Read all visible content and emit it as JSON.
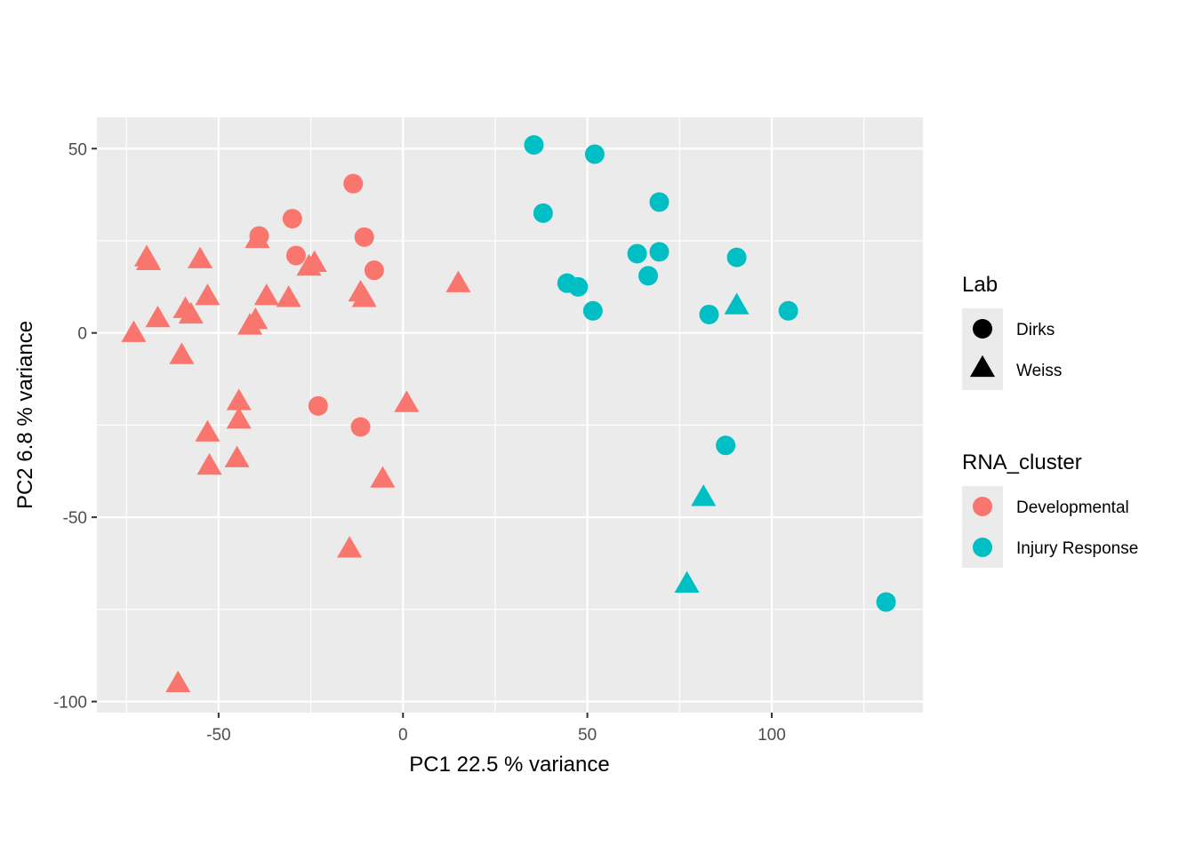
{
  "chart_data": {
    "type": "scatter",
    "xlabel": "PC1 22.5 % variance",
    "ylabel": "PC2 6.8 % variance",
    "xlim": [
      -83,
      141
    ],
    "ylim": [
      -103,
      58.5
    ],
    "x_ticks": [
      -50,
      0,
      50,
      100
    ],
    "y_ticks": [
      -100,
      -50,
      0,
      50
    ],
    "grid": true,
    "legend_position": "right",
    "colors": {
      "Developmental": "#F8766D",
      "Injury Response": "#00BFC4",
      "panel": "#EBEBEB",
      "grid": "#FFFFFF",
      "legend_key": "#000000"
    },
    "legends": [
      {
        "title": "Lab",
        "items": [
          {
            "label": "Dirks",
            "shape": "circle"
          },
          {
            "label": "Weiss",
            "shape": "triangle"
          }
        ]
      },
      {
        "title": "RNA_cluster",
        "items": [
          {
            "label": "Developmental",
            "color": "#F8766D"
          },
          {
            "label": "Injury Response",
            "color": "#00BFC4"
          }
        ]
      }
    ],
    "points": [
      {
        "x": -13.5,
        "y": 40.5,
        "lab": "Dirks",
        "cluster": "Developmental"
      },
      {
        "x": -30.0,
        "y": 31.0,
        "lab": "Dirks",
        "cluster": "Developmental"
      },
      {
        "x": -39.0,
        "y": 26.3,
        "lab": "Dirks",
        "cluster": "Developmental"
      },
      {
        "x": -10.5,
        "y": 26.0,
        "lab": "Dirks",
        "cluster": "Developmental"
      },
      {
        "x": -29.0,
        "y": 21.0,
        "lab": "Dirks",
        "cluster": "Developmental"
      },
      {
        "x": -7.8,
        "y": 17.0,
        "lab": "Dirks",
        "cluster": "Developmental"
      },
      {
        "x": -23.0,
        "y": -19.8,
        "lab": "Dirks",
        "cluster": "Developmental"
      },
      {
        "x": -11.5,
        "y": -25.5,
        "lab": "Dirks",
        "cluster": "Developmental"
      },
      {
        "x": -69.5,
        "y": 20.0,
        "lab": "Weiss",
        "cluster": "Developmental"
      },
      {
        "x": -69.0,
        "y": 19.0,
        "lab": "Weiss",
        "cluster": "Developmental"
      },
      {
        "x": -55.0,
        "y": 19.5,
        "lab": "Weiss",
        "cluster": "Developmental"
      },
      {
        "x": -39.5,
        "y": 25.0,
        "lab": "Weiss",
        "cluster": "Developmental"
      },
      {
        "x": -24.0,
        "y": 18.5,
        "lab": "Weiss",
        "cluster": "Developmental"
      },
      {
        "x": -25.5,
        "y": 17.5,
        "lab": "Weiss",
        "cluster": "Developmental"
      },
      {
        "x": 15.0,
        "y": 13.0,
        "lab": "Weiss",
        "cluster": "Developmental"
      },
      {
        "x": -11.5,
        "y": 10.5,
        "lab": "Weiss",
        "cluster": "Developmental"
      },
      {
        "x": -10.5,
        "y": 9.0,
        "lab": "Weiss",
        "cluster": "Developmental"
      },
      {
        "x": -53.0,
        "y": 9.5,
        "lab": "Weiss",
        "cluster": "Developmental"
      },
      {
        "x": -37.0,
        "y": 9.5,
        "lab": "Weiss",
        "cluster": "Developmental"
      },
      {
        "x": -31.0,
        "y": 9.0,
        "lab": "Weiss",
        "cluster": "Developmental"
      },
      {
        "x": -59.0,
        "y": 6.0,
        "lab": "Weiss",
        "cluster": "Developmental"
      },
      {
        "x": -57.5,
        "y": 4.5,
        "lab": "Weiss",
        "cluster": "Developmental"
      },
      {
        "x": -66.5,
        "y": 3.5,
        "lab": "Weiss",
        "cluster": "Developmental"
      },
      {
        "x": -40.0,
        "y": 3.0,
        "lab": "Weiss",
        "cluster": "Developmental"
      },
      {
        "x": -41.5,
        "y": 1.5,
        "lab": "Weiss",
        "cluster": "Developmental"
      },
      {
        "x": -73.0,
        "y": -0.5,
        "lab": "Weiss",
        "cluster": "Developmental"
      },
      {
        "x": -60.0,
        "y": -6.5,
        "lab": "Weiss",
        "cluster": "Developmental"
      },
      {
        "x": -44.5,
        "y": -19.0,
        "lab": "Weiss",
        "cluster": "Developmental"
      },
      {
        "x": 1.0,
        "y": -19.5,
        "lab": "Weiss",
        "cluster": "Developmental"
      },
      {
        "x": -44.5,
        "y": -24.0,
        "lab": "Weiss",
        "cluster": "Developmental"
      },
      {
        "x": -53.0,
        "y": -27.5,
        "lab": "Weiss",
        "cluster": "Developmental"
      },
      {
        "x": -45.0,
        "y": -34.5,
        "lab": "Weiss",
        "cluster": "Developmental"
      },
      {
        "x": -52.5,
        "y": -36.5,
        "lab": "Weiss",
        "cluster": "Developmental"
      },
      {
        "x": -5.5,
        "y": -40.0,
        "lab": "Weiss",
        "cluster": "Developmental"
      },
      {
        "x": -14.5,
        "y": -59.0,
        "lab": "Weiss",
        "cluster": "Developmental"
      },
      {
        "x": -61.0,
        "y": -95.5,
        "lab": "Weiss",
        "cluster": "Developmental"
      },
      {
        "x": 35.5,
        "y": 51.0,
        "lab": "Dirks",
        "cluster": "Injury Response"
      },
      {
        "x": 52.0,
        "y": 48.5,
        "lab": "Dirks",
        "cluster": "Injury Response"
      },
      {
        "x": 69.5,
        "y": 35.5,
        "lab": "Dirks",
        "cluster": "Injury Response"
      },
      {
        "x": 38.0,
        "y": 32.5,
        "lab": "Dirks",
        "cluster": "Injury Response"
      },
      {
        "x": 63.5,
        "y": 21.5,
        "lab": "Dirks",
        "cluster": "Injury Response"
      },
      {
        "x": 69.5,
        "y": 22.0,
        "lab": "Dirks",
        "cluster": "Injury Response"
      },
      {
        "x": 90.5,
        "y": 20.5,
        "lab": "Dirks",
        "cluster": "Injury Response"
      },
      {
        "x": 66.5,
        "y": 15.5,
        "lab": "Dirks",
        "cluster": "Injury Response"
      },
      {
        "x": 44.5,
        "y": 13.5,
        "lab": "Dirks",
        "cluster": "Injury Response"
      },
      {
        "x": 47.5,
        "y": 12.5,
        "lab": "Dirks",
        "cluster": "Injury Response"
      },
      {
        "x": 51.5,
        "y": 6.0,
        "lab": "Dirks",
        "cluster": "Injury Response"
      },
      {
        "x": 83.0,
        "y": 5.0,
        "lab": "Dirks",
        "cluster": "Injury Response"
      },
      {
        "x": 104.5,
        "y": 6.0,
        "lab": "Dirks",
        "cluster": "Injury Response"
      },
      {
        "x": 87.5,
        "y": -30.5,
        "lab": "Dirks",
        "cluster": "Injury Response"
      },
      {
        "x": 131.0,
        "y": -73.0,
        "lab": "Dirks",
        "cluster": "Injury Response"
      },
      {
        "x": 90.5,
        "y": 7.0,
        "lab": "Weiss",
        "cluster": "Injury Response"
      },
      {
        "x": 81.5,
        "y": -45.0,
        "lab": "Weiss",
        "cluster": "Injury Response"
      },
      {
        "x": 77.0,
        "y": -68.5,
        "lab": "Weiss",
        "cluster": "Injury Response"
      }
    ]
  }
}
